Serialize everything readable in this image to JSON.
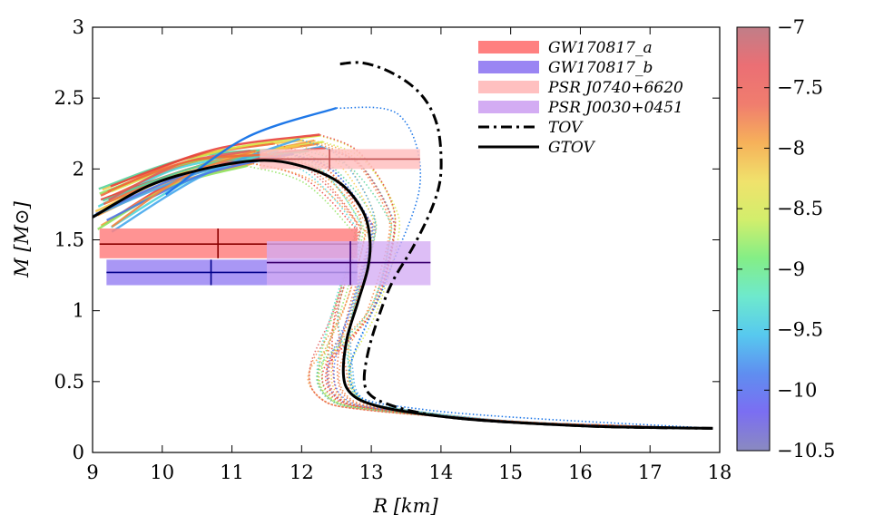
{
  "chart_data": {
    "type": "line",
    "title": "",
    "xlabel": "R [km]",
    "ylabel": "M [M⊙]",
    "xlim": [
      9,
      18
    ],
    "ylim": [
      0,
      3
    ],
    "x_ticks": [
      "9",
      "10",
      "11",
      "12",
      "13",
      "14",
      "15",
      "16",
      "17",
      "18"
    ],
    "y_ticks": [
      "0",
      "0.5",
      "1",
      "1.5",
      "2",
      "2.5",
      "3"
    ],
    "grid": false,
    "legend_position": "top-right",
    "colorbar": {
      "range": [
        -10.5,
        -7
      ],
      "ticks": [
        "−7",
        "−7.5",
        "−8",
        "−8.5",
        "−9",
        "−9.5",
        "−10",
        "−10.5"
      ],
      "stops": [
        "#8a8ac0",
        "#7b6ef2",
        "#5f8ef0",
        "#57c9ef",
        "#6ee9cd",
        "#84ee86",
        "#d2ee6c",
        "#f0e26c",
        "#f6b15a",
        "#f07d6e",
        "#eb6f74",
        "#c07e88"
      ]
    },
    "legend": [
      {
        "label": "GW170817_a",
        "style": "band",
        "color": "#ff8080"
      },
      {
        "label": "GW170817_b",
        "style": "band",
        "color": "#9a85f3"
      },
      {
        "label": "PSR J0740+6620",
        "style": "band",
        "color": "#ffc0c0"
      },
      {
        "label": "PSR J0030+0451",
        "style": "band",
        "color": "#d3acf3"
      },
      {
        "label": "TOV",
        "style": "dash-dot",
        "color": "#000000"
      },
      {
        "label": "GTOV",
        "style": "solid",
        "color": "#000000"
      }
    ],
    "constraints": [
      {
        "name": "GW170817_a",
        "r_range": [
          9.1,
          12.8
        ],
        "r_center": 10.8,
        "m_range": [
          1.37,
          1.58
        ],
        "m_center": 1.47,
        "fill": "#ff8080",
        "line": "#8b0000"
      },
      {
        "name": "GW170817_b",
        "r_range": [
          9.2,
          12.8
        ],
        "r_center": 10.7,
        "m_range": [
          1.18,
          1.36
        ],
        "m_center": 1.27,
        "fill": "#9a85f3",
        "line": "#00008b"
      },
      {
        "name": "PSR J0740+6620",
        "r_range": [
          11.4,
          13.7
        ],
        "r_center": 12.4,
        "m_range": [
          2.0,
          2.14
        ],
        "m_center": 2.07,
        "fill": "#ffc0c0",
        "line": "#c05050"
      },
      {
        "name": "PSR J0030+0451",
        "r_range": [
          11.5,
          13.85
        ],
        "r_center": 12.7,
        "m_range": [
          1.18,
          1.49
        ],
        "m_center": 1.34,
        "fill": "#d3acf3",
        "line": "#3b0070"
      }
    ],
    "series": [
      {
        "name": "TOV",
        "style": "dash-dot",
        "color": "#000000",
        "x": [
          17.9,
          16.5,
          15.5,
          14.5,
          13.8,
          13.3,
          13.0,
          12.9,
          12.95,
          13.1,
          13.3,
          13.6,
          13.85,
          13.98,
          14.0,
          13.95,
          13.8,
          13.55,
          13.2,
          12.85,
          12.55
        ],
        "y": [
          0.17,
          0.18,
          0.2,
          0.23,
          0.27,
          0.33,
          0.4,
          0.5,
          0.7,
          0.95,
          1.2,
          1.45,
          1.7,
          1.9,
          2.1,
          2.3,
          2.47,
          2.6,
          2.7,
          2.75,
          2.74
        ]
      },
      {
        "name": "GTOV",
        "style": "solid",
        "color": "#000000",
        "x": [
          17.9,
          16.5,
          15.5,
          14.5,
          13.6,
          13.0,
          12.7,
          12.6,
          12.65,
          12.8,
          12.95,
          12.98,
          12.88,
          12.55,
          12.0,
          11.4,
          10.6,
          9.8,
          9.0
        ],
        "y": [
          0.17,
          0.18,
          0.2,
          0.23,
          0.28,
          0.34,
          0.42,
          0.55,
          0.8,
          1.05,
          1.3,
          1.5,
          1.7,
          1.9,
          2.02,
          2.06,
          2.0,
          1.88,
          1.66
        ]
      }
    ],
    "ensemble": {
      "count": 26,
      "colors": [
        "#e8413e",
        "#ef6a3a",
        "#f59b3c",
        "#f6c948",
        "#d8e84a",
        "#8fe35e",
        "#57d39a",
        "#4fd6d9",
        "#45a7ec",
        "#4c77e8",
        "#e05b5b",
        "#f2843f"
      ],
      "r_start": [
        9.0,
        9.3
      ],
      "r_peak": [
        11.2,
        12.4
      ],
      "m_peak": [
        2.02,
        2.26
      ],
      "r_mid": [
        12.55,
        13.4
      ],
      "r_min": [
        12.1,
        12.75
      ],
      "blue_peak": {
        "r": 12.5,
        "m": 2.43
      }
    }
  }
}
